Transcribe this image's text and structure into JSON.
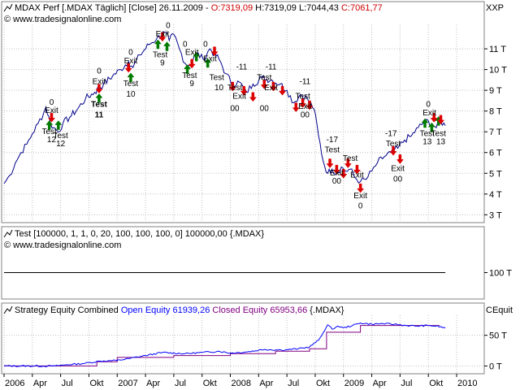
{
  "price_panel": {
    "title_prefix": "MDAX Perf [.MDAX  Täglich] [Close] 26.11.2009 -",
    "ohlc_o": "O:7319,09",
    "ohlc_h": "H:7319,09",
    "ohlc_l": "L:7044,43",
    "ohlc_c": "C:7061,77",
    "source": "© www.tradesignalonline.com",
    "scale_label": "XXP"
  },
  "indicator_panel": {
    "title": "Test [100000, 1, 1, 0, 20, 100, 100, 100, 0] 100000,00 {.MDAX}",
    "source": "© www.tradesignalonline.com"
  },
  "equity_panel": {
    "title_prefix": "Strategy Equity Combined",
    "open_equity": "Open Equity 61939,26",
    "closed_equity": "Closed Equity 65953,66",
    "suffix": "{.MDAX}",
    "scale_label": "CEquit"
  },
  "colors": {
    "price_line": "#00008b",
    "open_equity": "#0000ff",
    "closed_equity": "#800080",
    "ohlc_red": "#cc0000",
    "grid": "#bfbfbf",
    "buy_arrow": "#007a00",
    "sell_arrow": "#dd0000"
  },
  "chart_data": [
    {
      "type": "line",
      "name": "price",
      "y_ticks": [
        3,
        4,
        5,
        6,
        7,
        8,
        9,
        10,
        11
      ],
      "y_tick_labels": [
        "3 T",
        "4 T",
        "5 T",
        "6 T",
        "7 T",
        "8 T",
        "9 T",
        "10 T",
        "11 T"
      ],
      "ylim": [
        2.7,
        12.1
      ],
      "x_range": [
        2006.0,
        2010.0
      ],
      "points": [
        [
          2006.0,
          4.5
        ],
        [
          2006.05,
          4.9
        ],
        [
          2006.1,
          5.5
        ],
        [
          2006.15,
          6.0
        ],
        [
          2006.2,
          6.4
        ],
        [
          2006.25,
          6.9
        ],
        [
          2006.3,
          7.4
        ],
        [
          2006.35,
          7.9
        ],
        [
          2006.37,
          8.2
        ],
        [
          2006.41,
          7.4
        ],
        [
          2006.44,
          7.2
        ],
        [
          2006.48,
          7.0
        ],
        [
          2006.52,
          7.4
        ],
        [
          2006.58,
          7.7
        ],
        [
          2006.65,
          8.1
        ],
        [
          2006.72,
          8.6
        ],
        [
          2006.8,
          8.9
        ],
        [
          2006.88,
          9.3
        ],
        [
          2006.96,
          9.7
        ],
        [
          2007.03,
          10.0
        ],
        [
          2007.1,
          10.4
        ],
        [
          2007.14,
          10.1
        ],
        [
          2007.2,
          10.7
        ],
        [
          2007.28,
          11.2
        ],
        [
          2007.35,
          11.5
        ],
        [
          2007.42,
          11.8
        ],
        [
          2007.46,
          11.4
        ],
        [
          2007.5,
          11.7
        ],
        [
          2007.55,
          11.0
        ],
        [
          2007.6,
          10.3
        ],
        [
          2007.64,
          10.2
        ],
        [
          2007.7,
          10.8
        ],
        [
          2007.76,
          10.5
        ],
        [
          2007.82,
          11.0
        ],
        [
          2007.9,
          10.5
        ],
        [
          2007.96,
          9.8
        ],
        [
          2008.02,
          9.3
        ],
        [
          2008.08,
          9.4
        ],
        [
          2008.14,
          8.9
        ],
        [
          2008.2,
          9.3
        ],
        [
          2008.28,
          9.6
        ],
        [
          2008.36,
          9.5
        ],
        [
          2008.44,
          9.3
        ],
        [
          2008.5,
          9.0
        ],
        [
          2008.56,
          8.4
        ],
        [
          2008.62,
          8.8
        ],
        [
          2008.68,
          8.6
        ],
        [
          2008.74,
          8.1
        ],
        [
          2008.78,
          6.8
        ],
        [
          2008.82,
          5.6
        ],
        [
          2008.86,
          5.0
        ],
        [
          2008.9,
          5.2
        ],
        [
          2008.94,
          5.0
        ],
        [
          2008.98,
          5.3
        ],
        [
          2009.02,
          5.1
        ],
        [
          2009.06,
          5.2
        ],
        [
          2009.1,
          4.8
        ],
        [
          2009.15,
          4.6
        ],
        [
          2009.2,
          4.7
        ],
        [
          2009.25,
          5.1
        ],
        [
          2009.3,
          5.5
        ],
        [
          2009.36,
          5.8
        ],
        [
          2009.42,
          6.0
        ],
        [
          2009.48,
          6.2
        ],
        [
          2009.54,
          6.6
        ],
        [
          2009.6,
          6.8
        ],
        [
          2009.66,
          7.2
        ],
        [
          2009.72,
          7.5
        ],
        [
          2009.78,
          7.4
        ],
        [
          2009.82,
          7.2
        ],
        [
          2009.86,
          7.5
        ],
        [
          2009.9,
          7.3
        ]
      ]
    },
    {
      "type": "line",
      "name": "Test",
      "y_ticks": [
        100
      ],
      "y_tick_labels": [
        "100 T"
      ],
      "ylim": [
        0,
        200
      ],
      "x_range": [
        2006.0,
        2010.0
      ],
      "points": [
        [
          2006.0,
          100
        ],
        [
          2009.9,
          100
        ]
      ]
    },
    {
      "type": "line",
      "name": "Strategy Equity Combined",
      "y_ticks": [
        0,
        50
      ],
      "y_tick_labels": [
        "0 T",
        "50 T"
      ],
      "ylim": [
        -10,
        80
      ],
      "x_range": [
        2006.0,
        2010.0
      ],
      "x_tick_positions": [
        2006.0,
        2006.25,
        2006.5,
        2006.75,
        2007.0,
        2007.25,
        2007.5,
        2007.75,
        2008.0,
        2008.25,
        2008.5,
        2008.75,
        2009.0,
        2009.25,
        2009.5,
        2009.75,
        2010.0
      ],
      "x_tick_labels": [
        "2006",
        "Apr",
        "Jul",
        "Okt",
        "2007",
        "Apr",
        "Jul",
        "Okt",
        "2008",
        "Apr",
        "Jul",
        "Okt",
        "2009",
        "Apr",
        "Jul",
        "Okt",
        "2010"
      ],
      "series": [
        {
          "name": "Open Equity",
          "points": [
            [
              2006.0,
              0
            ],
            [
              2006.45,
              0
            ],
            [
              2006.55,
              2
            ],
            [
              2006.7,
              4
            ],
            [
              2006.85,
              8
            ],
            [
              2007.0,
              9
            ],
            [
              2007.1,
              12
            ],
            [
              2007.25,
              17
            ],
            [
              2007.4,
              22
            ],
            [
              2007.6,
              20
            ],
            [
              2007.75,
              22
            ],
            [
              2007.9,
              24
            ],
            [
              2008.0,
              21
            ],
            [
              2008.15,
              23
            ],
            [
              2008.3,
              27
            ],
            [
              2008.45,
              26
            ],
            [
              2008.6,
              28
            ],
            [
              2008.7,
              31
            ],
            [
              2008.78,
              42
            ],
            [
              2008.82,
              54
            ],
            [
              2008.86,
              67
            ],
            [
              2008.9,
              60
            ],
            [
              2008.95,
              65
            ],
            [
              2009.0,
              62
            ],
            [
              2009.08,
              66
            ],
            [
              2009.15,
              70
            ],
            [
              2009.25,
              68
            ],
            [
              2009.35,
              69
            ],
            [
              2009.45,
              68
            ],
            [
              2009.55,
              66
            ],
            [
              2009.65,
              65
            ],
            [
              2009.75,
              66
            ],
            [
              2009.82,
              65
            ],
            [
              2009.9,
              62
            ]
          ]
        },
        {
          "name": "Closed Equity",
          "points": [
            [
              2006.0,
              0
            ],
            [
              2006.82,
              0
            ],
            [
              2006.82,
              7
            ],
            [
              2007.0,
              7
            ],
            [
              2007.0,
              14
            ],
            [
              2007.5,
              14
            ],
            [
              2007.5,
              17
            ],
            [
              2008.0,
              17
            ],
            [
              2008.0,
              20
            ],
            [
              2008.4,
              20
            ],
            [
              2008.4,
              24
            ],
            [
              2008.7,
              24
            ],
            [
              2008.7,
              28
            ],
            [
              2008.85,
              28
            ],
            [
              2008.85,
              55
            ],
            [
              2009.15,
              55
            ],
            [
              2009.15,
              66
            ],
            [
              2009.85,
              66
            ]
          ]
        }
      ]
    }
  ],
  "trade_annotations": [
    {
      "text": "0",
      "x": 2006.42,
      "y": 8.3
    },
    {
      "text": "Exit",
      "x": 2006.42,
      "y": 7.9
    },
    {
      "text": "Test",
      "x": 2006.4,
      "y": 6.9
    },
    {
      "text": "12",
      "x": 2006.42,
      "y": 6.5
    },
    {
      "text": "Test",
      "x": 2006.5,
      "y": 6.7
    },
    {
      "text": "12",
      "x": 2006.5,
      "y": 6.3
    },
    {
      "text": "0",
      "x": 2006.84,
      "y": 9.8
    },
    {
      "text": "Exit",
      "x": 2006.84,
      "y": 9.3
    },
    {
      "text": "Test",
      "x": 2006.84,
      "y": 8.2,
      "bold": true
    },
    {
      "text": "11",
      "x": 2006.84,
      "y": 7.7,
      "bold": true
    },
    {
      "text": "0",
      "x": 2007.12,
      "y": 10.7
    },
    {
      "text": "Exit",
      "x": 2007.12,
      "y": 10.3
    },
    {
      "text": "Test",
      "x": 2007.12,
      "y": 9.2
    },
    {
      "text": "10",
      "x": 2007.12,
      "y": 8.7
    },
    {
      "text": "0",
      "x": 2007.45,
      "y": 12.0
    },
    {
      "text": "Exit",
      "x": 2007.4,
      "y": 11.6
    },
    {
      "text": "Test",
      "x": 2007.38,
      "y": 10.6
    },
    {
      "text": "9",
      "x": 2007.4,
      "y": 10.2
    },
    {
      "text": "0",
      "x": 2007.6,
      "y": 11.1
    },
    {
      "text": "Exit",
      "x": 2007.66,
      "y": 10.7
    },
    {
      "text": "Test",
      "x": 2007.64,
      "y": 9.6
    },
    {
      "text": "9",
      "x": 2007.66,
      "y": 9.2
    },
    {
      "text": "0",
      "x": 2007.78,
      "y": 11.1
    },
    {
      "text": "Exit",
      "x": 2007.82,
      "y": 10.4
    },
    {
      "text": "Test",
      "x": 2007.88,
      "y": 9.5
    },
    {
      "text": "10",
      "x": 2007.9,
      "y": 9.0
    },
    {
      "text": "-11",
      "x": 2008.1,
      "y": 10.0
    },
    {
      "text": "Test",
      "x": 2008.04,
      "y": 9.0
    },
    {
      "text": "Exit",
      "x": 2008.08,
      "y": 8.6
    },
    {
      "text": "00",
      "x": 2008.04,
      "y": 8.0
    },
    {
      "text": "-11",
      "x": 2008.36,
      "y": 10.0
    },
    {
      "text": "Test",
      "x": 2008.3,
      "y": 9.5
    },
    {
      "text": "Exit",
      "x": 2008.36,
      "y": 9.0
    },
    {
      "text": "00",
      "x": 2008.3,
      "y": 8.0
    },
    {
      "text": "-11",
      "x": 2008.66,
      "y": 9.3
    },
    {
      "text": "Test",
      "x": 2008.64,
      "y": 8.6
    },
    {
      "text": "Exit",
      "x": 2008.66,
      "y": 8.1
    },
    {
      "text": "00",
      "x": 2008.66,
      "y": 7.7
    },
    {
      "text": "-17",
      "x": 2008.9,
      "y": 6.5
    },
    {
      "text": "Test",
      "x": 2008.9,
      "y": 6.0
    },
    {
      "text": "Exit",
      "x": 2008.94,
      "y": 4.9
    },
    {
      "text": "00",
      "x": 2008.94,
      "y": 4.5
    },
    {
      "text": "Test",
      "x": 2009.06,
      "y": 5.6
    },
    {
      "text": "Exit",
      "x": 2009.12,
      "y": 4.8
    },
    {
      "text": "Exit",
      "x": 2009.15,
      "y": 3.8
    },
    {
      "text": "0",
      "x": 2009.15,
      "y": 3.3
    },
    {
      "text": "-17",
      "x": 2009.42,
      "y": 6.8
    },
    {
      "text": "Test",
      "x": 2009.44,
      "y": 6.3
    },
    {
      "text": "Exit",
      "x": 2009.48,
      "y": 5.1
    },
    {
      "text": "00",
      "x": 2009.48,
      "y": 4.6
    },
    {
      "text": "0",
      "x": 2009.75,
      "y": 8.2
    },
    {
      "text": "Exit",
      "x": 2009.76,
      "y": 7.8
    },
    {
      "text": "Test",
      "x": 2009.74,
      "y": 6.8
    },
    {
      "text": "13",
      "x": 2009.74,
      "y": 6.4
    },
    {
      "text": "Test",
      "x": 2009.84,
      "y": 6.8
    },
    {
      "text": "13",
      "x": 2009.86,
      "y": 6.4
    }
  ],
  "trade_markers": [
    {
      "x": 2006.4,
      "y": 7.3,
      "dir": "up"
    },
    {
      "x": 2006.48,
      "y": 7.3,
      "dir": "up"
    },
    {
      "x": 2006.42,
      "y": 7.7,
      "dir": "down"
    },
    {
      "x": 2006.84,
      "y": 8.6,
      "dir": "up"
    },
    {
      "x": 2006.84,
      "y": 9.1,
      "dir": "down"
    },
    {
      "x": 2007.12,
      "y": 9.6,
      "dir": "up"
    },
    {
      "x": 2007.1,
      "y": 10.1,
      "dir": "down"
    },
    {
      "x": 2007.36,
      "y": 11.2,
      "dir": "up"
    },
    {
      "x": 2007.44,
      "y": 11.1,
      "dir": "up"
    },
    {
      "x": 2007.4,
      "y": 11.6,
      "dir": "down"
    },
    {
      "x": 2007.62,
      "y": 10.0,
      "dir": "up"
    },
    {
      "x": 2007.7,
      "y": 10.6,
      "dir": "up"
    },
    {
      "x": 2007.66,
      "y": 10.3,
      "dir": "down"
    },
    {
      "x": 2007.8,
      "y": 10.3,
      "dir": "up"
    },
    {
      "x": 2007.86,
      "y": 10.9,
      "dir": "down"
    },
    {
      "x": 2008.02,
      "y": 9.2,
      "dir": "down"
    },
    {
      "x": 2008.12,
      "y": 9.0,
      "dir": "down"
    },
    {
      "x": 2008.2,
      "y": 8.7,
      "dir": "down"
    },
    {
      "x": 2008.3,
      "y": 9.3,
      "dir": "down"
    },
    {
      "x": 2008.38,
      "y": 9.2,
      "dir": "down"
    },
    {
      "x": 2008.46,
      "y": 9.0,
      "dir": "down"
    },
    {
      "x": 2008.58,
      "y": 8.2,
      "dir": "down"
    },
    {
      "x": 2008.64,
      "y": 8.4,
      "dir": "down"
    },
    {
      "x": 2008.7,
      "y": 8.3,
      "dir": "down"
    },
    {
      "x": 2008.88,
      "y": 5.5,
      "dir": "down"
    },
    {
      "x": 2008.94,
      "y": 5.2,
      "dir": "down"
    },
    {
      "x": 2009.0,
      "y": 5.0,
      "dir": "down"
    },
    {
      "x": 2009.04,
      "y": 5.5,
      "dir": "down"
    },
    {
      "x": 2009.12,
      "y": 5.2,
      "dir": "down"
    },
    {
      "x": 2009.15,
      "y": 4.3,
      "dir": "down"
    },
    {
      "x": 2009.44,
      "y": 6.1,
      "dir": "down"
    },
    {
      "x": 2009.5,
      "y": 5.7,
      "dir": "down"
    },
    {
      "x": 2009.72,
      "y": 7.4,
      "dir": "up"
    },
    {
      "x": 2009.78,
      "y": 7.2,
      "dir": "up"
    },
    {
      "x": 2009.84,
      "y": 7.5,
      "dir": "up"
    },
    {
      "x": 2009.8,
      "y": 7.7,
      "dir": "down"
    },
    {
      "x": 2009.86,
      "y": 7.6,
      "dir": "down"
    }
  ]
}
